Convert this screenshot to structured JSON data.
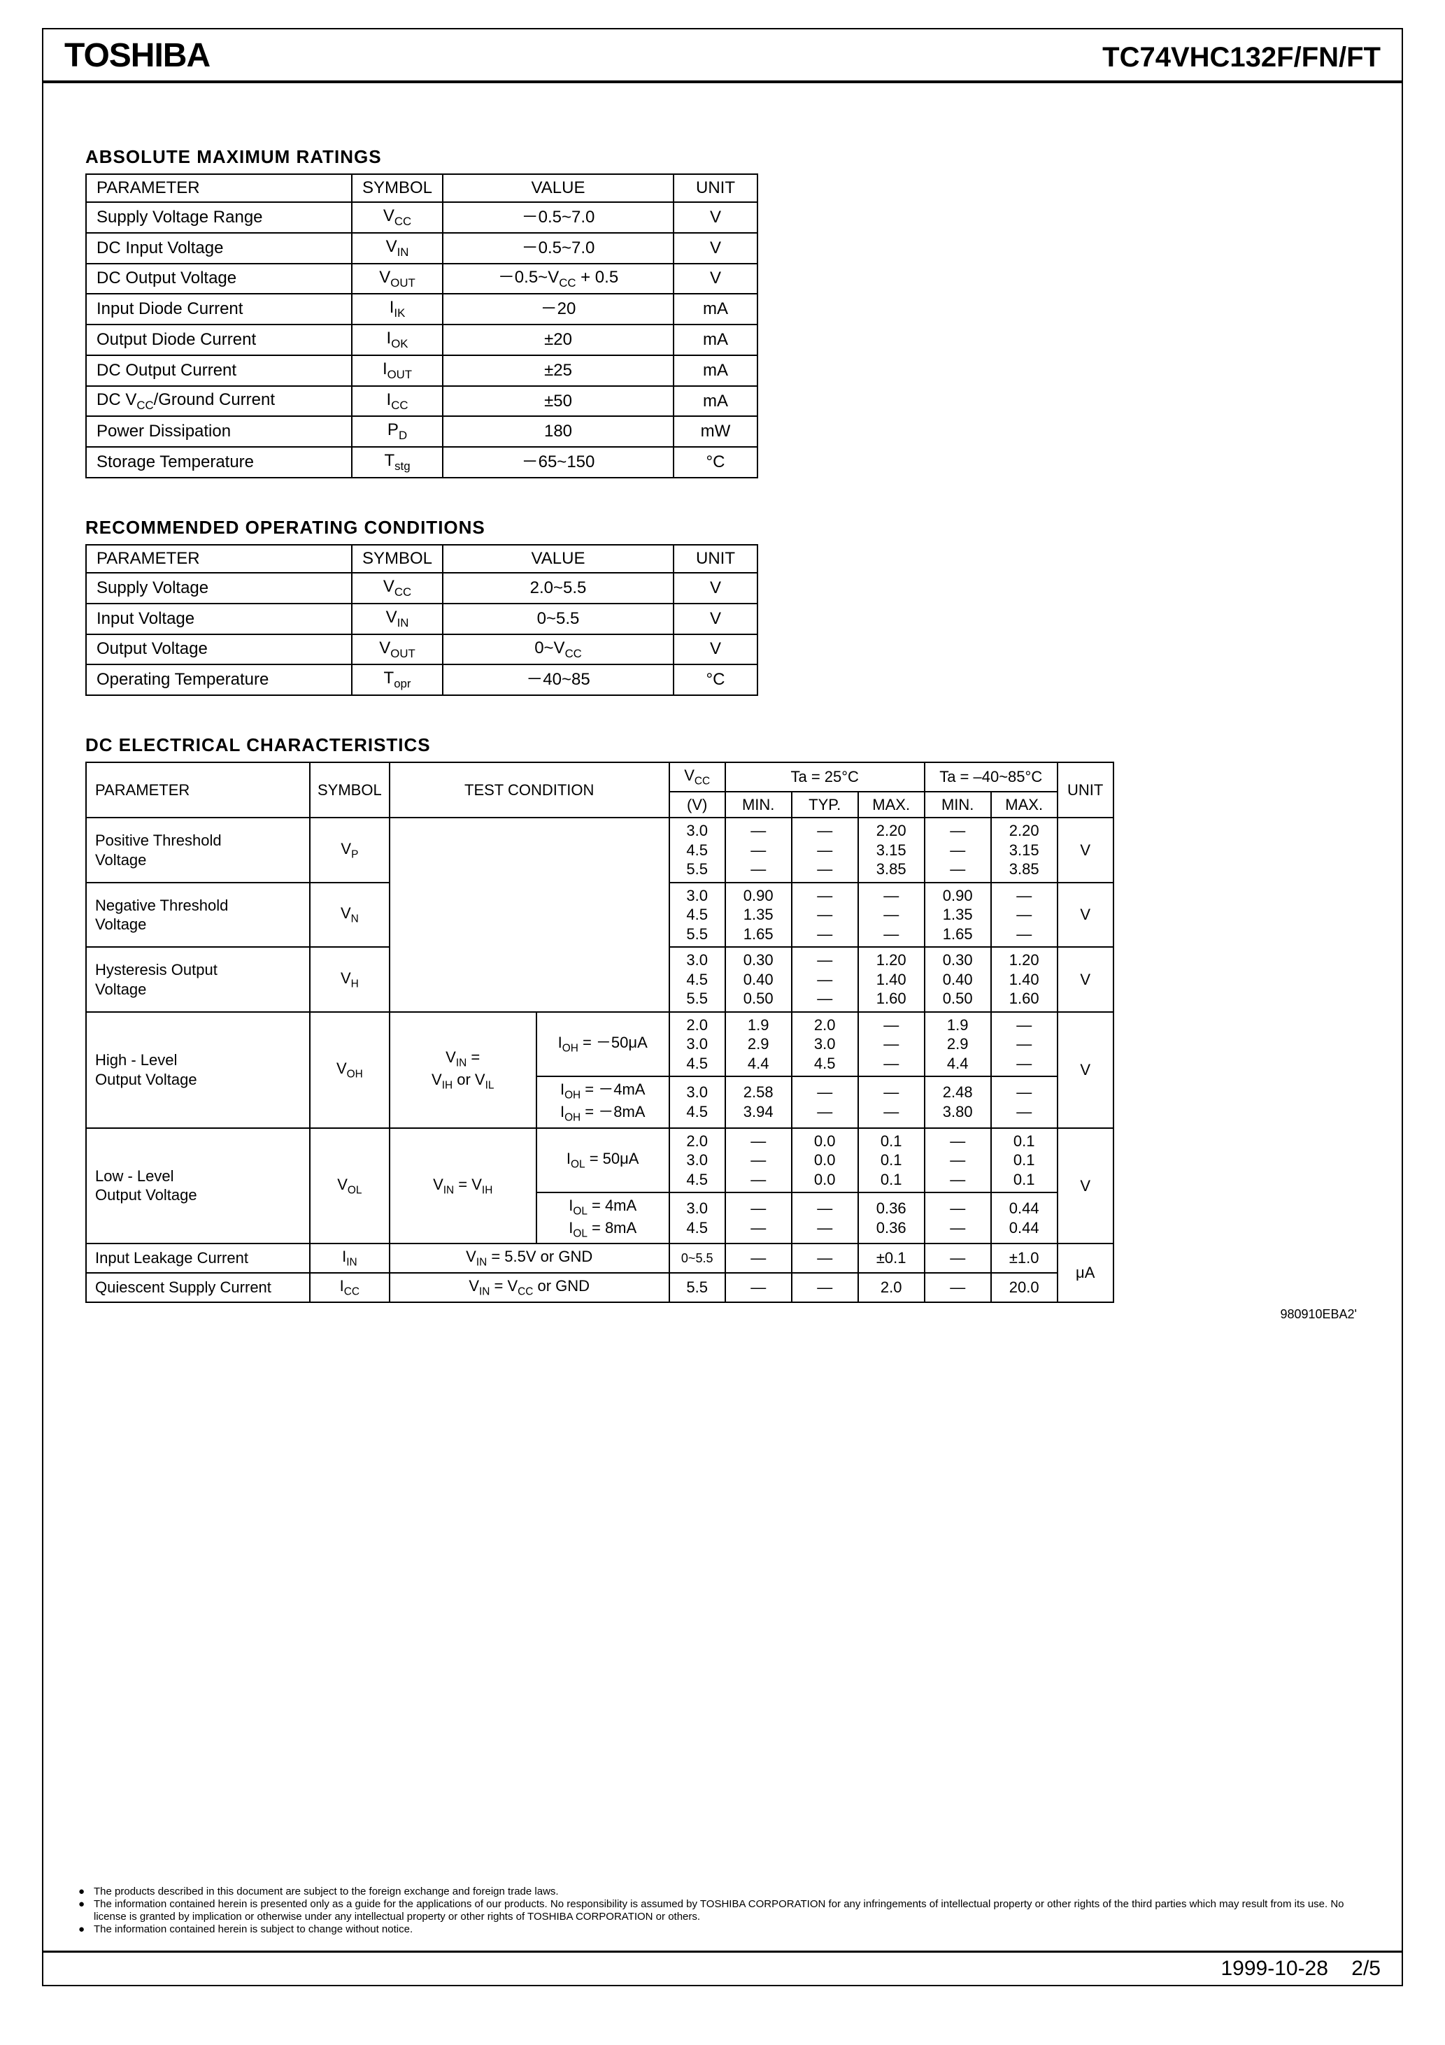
{
  "header": {
    "brand": "TOSHIBA",
    "part_number": "TC74VHC132F/FN/FT"
  },
  "tables": {
    "abs_max": {
      "title": "ABSOLUTE  MAXIMUM  RATINGS",
      "header": {
        "param": "PARAMETER",
        "symbol": "SYMBOL",
        "value": "VALUE",
        "unit": "UNIT"
      },
      "rows": [
        {
          "param": "Supply Voltage Range",
          "sym_html": "V<span class='sub'>CC</span>",
          "value": "－0.5~7.0",
          "unit": "V"
        },
        {
          "param": "DC Input Voltage",
          "sym_html": "V<span class='sub'>IN</span>",
          "value": "－0.5~7.0",
          "unit": "V"
        },
        {
          "param": "DC Output Voltage",
          "sym_html": "V<span class='sub'>OUT</span>",
          "value_html": "－0.5~V<span class='sub'>CC</span> + 0.5",
          "unit": "V"
        },
        {
          "param": "Input Diode Current",
          "sym_html": "I<span class='sub'>IK</span>",
          "value": "－20",
          "unit": "mA"
        },
        {
          "param": "Output Diode Current",
          "sym_html": "I<span class='sub'>OK</span>",
          "value": "±20",
          "unit": "mA"
        },
        {
          "param": "DC Output Current",
          "sym_html": "I<span class='sub'>OUT</span>",
          "value": "±25",
          "unit": "mA"
        },
        {
          "param_html": "DC V<span class='sub'>CC</span>/Ground Current",
          "sym_html": "I<span class='sub'>CC</span>",
          "value": "±50",
          "unit": "mA"
        },
        {
          "param": "Power Dissipation",
          "sym_html": "P<span class='sub'>D</span>",
          "value": "180",
          "unit": "mW"
        },
        {
          "param": "Storage Temperature",
          "sym_html": "T<span class='sub'>stg</span>",
          "value": "－65~150",
          "unit": "°C"
        }
      ]
    },
    "rec_op": {
      "title": "RECOMMENDED OPERATING CONDITIONS",
      "header": {
        "param": "PARAMETER",
        "symbol": "SYMBOL",
        "value": "VALUE",
        "unit": "UNIT"
      },
      "rows": [
        {
          "param": "Supply  Voltage",
          "sym_html": "V<span class='sub'>CC</span>",
          "value": "2.0~5.5",
          "unit": "V"
        },
        {
          "param": "Input  Voltage",
          "sym_html": "V<span class='sub'>IN</span>",
          "value": "0~5.5",
          "unit": "V"
        },
        {
          "param": "Output  Voltage",
          "sym_html": "V<span class='sub'>OUT</span>",
          "value_html": "0~V<span class='sub'>CC</span>",
          "unit": "V"
        },
        {
          "param": "Operating  Temperature",
          "sym_html": "T<span class='sub'>opr</span>",
          "value": "－40~85",
          "unit": "°C"
        }
      ]
    },
    "dc": {
      "title": "DC  ELECTRICAL  CHARACTERISTICS",
      "header": {
        "param": "PARAMETER",
        "symbol": "SYMBOL",
        "test": "TEST CONDITION",
        "vcc_top": "V",
        "vcc_sub": "CC",
        "vcc_bot": "(V)",
        "ta25": "Ta = 25°C",
        "ta_range": "Ta = –40~85°C",
        "min": "MIN.",
        "typ": "TYP.",
        "max": "MAX.",
        "unit": "UNIT"
      }
    }
  },
  "doc_code": "980910EBA2'",
  "disclaimer": [
    "The products described in this document are subject to the foreign exchange and foreign trade laws.",
    "The information contained herein is presented only as a guide for the applications of our products. No responsibility is assumed by TOSHIBA CORPORATION for any infringements of intellectual property or other rights of the third parties which may result from its use. No license is granted by implication or otherwise under any intellectual property or other rights of TOSHIBA CORPORATION or others.",
    "The information contained herein is subject to change without notice."
  ],
  "footer": {
    "date": "1999-10-28",
    "page": "2/5"
  }
}
